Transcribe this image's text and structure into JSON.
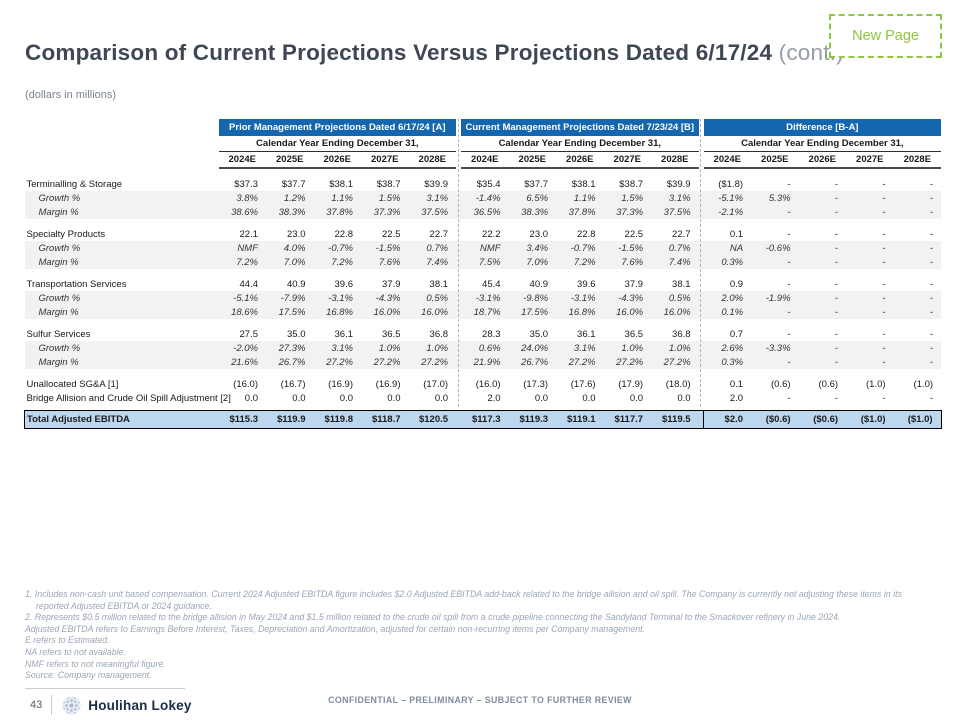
{
  "title": {
    "main": "Comparison of Current Projections Versus Projections Dated 6/17/24",
    "cont": "(cont.)"
  },
  "badge": {
    "label": "New Page"
  },
  "subtitle": "(dollars in millions)",
  "colors": {
    "header_blue": "#1467ae",
    "total_row_fill": "#bdd7ee",
    "badge_green": "#8dc63f",
    "brand_navy": "#1c2b4a",
    "shaded_row": "#f2f2f2"
  },
  "table": {
    "sections": [
      {
        "title": "Prior Management Projections Dated 6/17/24 [A]"
      },
      {
        "title": "Current Management Projections Dated 7/23/24 [B]"
      },
      {
        "title": "Difference [B-A]"
      }
    ],
    "calendar_header": "Calendar Year Ending December 31,",
    "years": [
      "2024E",
      "2025E",
      "2026E",
      "2027E",
      "2028E"
    ],
    "rows": [
      {
        "label": "Terminalling & Storage",
        "type": "section",
        "gap_before": false,
        "prior": [
          "$37.3",
          "$37.7",
          "$38.1",
          "$38.7",
          "$39.9"
        ],
        "current": [
          "$35.4",
          "$37.7",
          "$38.1",
          "$38.7",
          "$39.9"
        ],
        "diff": [
          "($1.8)",
          "-",
          "-",
          "-",
          "-"
        ]
      },
      {
        "label": "Growth %",
        "type": "pct",
        "gap_before": false,
        "prior": [
          "3.8%",
          "1.2%",
          "1.1%",
          "1.5%",
          "3.1%"
        ],
        "current": [
          "-1.4%",
          "6.5%",
          "1.1%",
          "1.5%",
          "3.1%"
        ],
        "diff": [
          "-5.1%",
          "5.3%",
          "-",
          "-",
          "-"
        ]
      },
      {
        "label": "Margin %",
        "type": "pct",
        "gap_before": false,
        "prior": [
          "38.6%",
          "38.3%",
          "37.8%",
          "37.3%",
          "37.5%"
        ],
        "current": [
          "36.5%",
          "38.3%",
          "37.8%",
          "37.3%",
          "37.5%"
        ],
        "diff": [
          "-2.1%",
          "-",
          "-",
          "-",
          "-"
        ]
      },
      {
        "label": "Specialty Products",
        "type": "section",
        "gap_before": true,
        "prior": [
          "22.1",
          "23.0",
          "22.8",
          "22.5",
          "22.7"
        ],
        "current": [
          "22.2",
          "23.0",
          "22.8",
          "22.5",
          "22.7"
        ],
        "diff": [
          "0.1",
          "-",
          "-",
          "-",
          "-"
        ]
      },
      {
        "label": "Growth %",
        "type": "pct",
        "gap_before": false,
        "prior": [
          "NMF",
          "4.0%",
          "-0.7%",
          "-1.5%",
          "0.7%"
        ],
        "current": [
          "NMF",
          "3.4%",
          "-0.7%",
          "-1.5%",
          "0.7%"
        ],
        "diff": [
          "NA",
          "-0.6%",
          "-",
          "-",
          "-"
        ]
      },
      {
        "label": "Margin %",
        "type": "pct",
        "gap_before": false,
        "prior": [
          "7.2%",
          "7.0%",
          "7.2%",
          "7.6%",
          "7.4%"
        ],
        "current": [
          "7.5%",
          "7.0%",
          "7.2%",
          "7.6%",
          "7.4%"
        ],
        "diff": [
          "0.3%",
          "-",
          "-",
          "-",
          "-"
        ]
      },
      {
        "label": "Transportation Services",
        "type": "section",
        "gap_before": true,
        "prior": [
          "44.4",
          "40.9",
          "39.6",
          "37.9",
          "38.1"
        ],
        "current": [
          "45.4",
          "40.9",
          "39.6",
          "37.9",
          "38.1"
        ],
        "diff": [
          "0.9",
          "-",
          "-",
          "-",
          "-"
        ]
      },
      {
        "label": "Growth %",
        "type": "pct",
        "gap_before": false,
        "prior": [
          "-5.1%",
          "-7.9%",
          "-3.1%",
          "-4.3%",
          "0.5%"
        ],
        "current": [
          "-3.1%",
          "-9.8%",
          "-3.1%",
          "-4.3%",
          "0.5%"
        ],
        "diff": [
          "2.0%",
          "-1.9%",
          "-",
          "-",
          "-"
        ]
      },
      {
        "label": "Margin %",
        "type": "pct",
        "gap_before": false,
        "prior": [
          "18.6%",
          "17.5%",
          "16.8%",
          "16.0%",
          "16.0%"
        ],
        "current": [
          "18.7%",
          "17.5%",
          "16.8%",
          "16.0%",
          "16.0%"
        ],
        "diff": [
          "0.1%",
          "-",
          "-",
          "-",
          "-"
        ]
      },
      {
        "label": "Sulfur Services",
        "type": "section",
        "gap_before": true,
        "prior": [
          "27.5",
          "35.0",
          "36.1",
          "36.5",
          "36.8"
        ],
        "current": [
          "28.3",
          "35.0",
          "36.1",
          "36.5",
          "36.8"
        ],
        "diff": [
          "0.7",
          "-",
          "-",
          "-",
          "-"
        ]
      },
      {
        "label": "Growth %",
        "type": "pct",
        "gap_before": false,
        "prior": [
          "-2.0%",
          "27.3%",
          "3.1%",
          "1.0%",
          "1.0%"
        ],
        "current": [
          "0.6%",
          "24.0%",
          "3.1%",
          "1.0%",
          "1.0%"
        ],
        "diff": [
          "2.6%",
          "-3.3%",
          "-",
          "-",
          "-"
        ]
      },
      {
        "label": "Margin %",
        "type": "pct",
        "gap_before": false,
        "prior": [
          "21.6%",
          "26.7%",
          "27.2%",
          "27.2%",
          "27.2%"
        ],
        "current": [
          "21.9%",
          "26.7%",
          "27.2%",
          "27.2%",
          "27.2%"
        ],
        "diff": [
          "0.3%",
          "-",
          "-",
          "-",
          "-"
        ]
      },
      {
        "label": "Unallocated SG&A [1]",
        "type": "plain",
        "gap_before": true,
        "prior": [
          "(16.0)",
          "(16.7)",
          "(16.9)",
          "(16.9)",
          "(17.0)"
        ],
        "current": [
          "(16.0)",
          "(17.3)",
          "(17.6)",
          "(17.9)",
          "(18.0)"
        ],
        "diff": [
          "0.1",
          "(0.6)",
          "(0.6)",
          "(1.0)",
          "(1.0)"
        ]
      },
      {
        "label": "Bridge Allision and Crude Oil Spill Adjustment [2]",
        "type": "plain",
        "gap_before": false,
        "prior": [
          "0.0",
          "0.0",
          "0.0",
          "0.0",
          "0.0"
        ],
        "current": [
          "2.0",
          "0.0",
          "0.0",
          "0.0",
          "0.0"
        ],
        "diff": [
          "2.0",
          "-",
          "-",
          "-",
          "-"
        ]
      }
    ],
    "total": {
      "label": "Total Adjusted EBITDA",
      "prior": [
        "$115.3",
        "$119.9",
        "$119.8",
        "$118.7",
        "$120.5"
      ],
      "current": [
        "$117.3",
        "$119.3",
        "$119.1",
        "$117.7",
        "$119.5"
      ],
      "diff": [
        "$2.0",
        "($0.6)",
        "($0.6)",
        "($1.0)",
        "($1.0)"
      ]
    }
  },
  "footnotes": [
    "1. Includes non-cash unit based compensation. Current 2024 Adjusted EBITDA figure includes $2.0 Adjusted EBITDA add-back related to the bridge allision and oil spill. The Company is currently not adjusting these items in its reported Adjusted EBITDA or 2024 guidance.",
    "2. Represents $0.5 million related to the bridge allision in May 2024 and $1.5 million related to the crude oil spill from a crude pipeline connecting the Sandyland Terminal to the Smackover refinery in June 2024.",
    "Adjusted EBITDA refers to Earnings Before Interest, Taxes, Depreciation and Amortization, adjusted for certain non-recurring items per Company management.",
    "E refers to Estimated.",
    "NA refers to not available.",
    "NMF refers to not meaningful figure.",
    "Source: Company management."
  ],
  "footer": {
    "page": "43",
    "brand": "Houlihan Lokey",
    "confidential": "CONFIDENTIAL – PRELIMINARY – SUBJECT TO FURTHER REVIEW"
  }
}
